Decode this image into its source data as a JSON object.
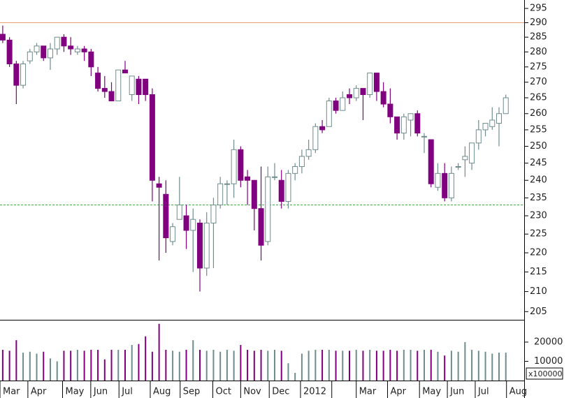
{
  "chart_data": {
    "type": "candlestick",
    "yscale": "log",
    "ylim": [
      203,
      298
    ],
    "yticks": [
      205,
      210,
      215,
      220,
      225,
      230,
      235,
      240,
      245,
      250,
      255,
      260,
      265,
      270,
      275,
      280,
      285,
      290,
      295
    ],
    "xlim": [
      -0.4,
      76.7
    ],
    "xticks": [
      {
        "value": -0.4,
        "label": "Mar"
      },
      {
        "value": 3.7,
        "label": "Apr"
      },
      {
        "value": 8.8,
        "label": "May"
      },
      {
        "value": 12.95,
        "label": "Jun"
      },
      {
        "value": 17.1,
        "label": "Jul"
      },
      {
        "value": 21.7,
        "label": "Aug"
      },
      {
        "value": 26.1,
        "label": "Sep"
      },
      {
        "value": 30.9,
        "label": "Oct"
      },
      {
        "value": 35.0,
        "label": "Nov"
      },
      {
        "value": 39.2,
        "label": "Dec"
      },
      {
        "value": 43.8,
        "label": "2012"
      },
      {
        "value": 48.4,
        "label": null
      },
      {
        "value": 52.0,
        "label": "Mar"
      },
      {
        "value": 56.6,
        "label": "Apr"
      },
      {
        "value": 61.3,
        "label": "May"
      },
      {
        "value": 65.4,
        "label": "Jun"
      },
      {
        "value": 69.5,
        "label": "Jul"
      },
      {
        "value": 74.1,
        "label": "Aug"
      }
    ],
    "up_color": "#6f8c8c",
    "down_color": "#800080",
    "reference_lines": [
      {
        "value": 290,
        "color": "#e8a070",
        "style": "solid"
      },
      {
        "value": 233,
        "color": "#3cb043",
        "style": "dashed"
      }
    ],
    "open": [
      286,
      284,
      276,
      269,
      277,
      280,
      282,
      278,
      281,
      285,
      282,
      280,
      281,
      280,
      273,
      268,
      267,
      264,
      274,
      266,
      271,
      271,
      266,
      239,
      236,
      223,
      229,
      230,
      226,
      228,
      216,
      228,
      233,
      239,
      239,
      249,
      241,
      240,
      232,
      223,
      241,
      240,
      234,
      242,
      244,
      247,
      249,
      256,
      256,
      264,
      261,
      266,
      265,
      268,
      266,
      273,
      267,
      263,
      259,
      254,
      258,
      260,
      253,
      252,
      238,
      242,
      235,
      244,
      246,
      245,
      251,
      255,
      256,
      257,
      260
    ],
    "high": [
      289,
      285,
      277,
      277,
      281,
      283,
      282,
      283,
      285,
      286,
      285,
      282,
      282,
      281,
      275,
      272,
      270,
      274,
      277,
      272,
      272,
      271,
      268,
      241,
      240,
      228,
      241,
      233,
      232,
      229,
      231,
      235,
      241,
      240,
      252,
      250,
      243,
      240,
      244,
      244,
      245,
      243,
      243,
      245,
      249,
      252,
      257,
      258,
      265,
      265,
      267,
      268,
      269,
      268,
      273,
      273,
      270,
      268,
      259,
      260,
      260,
      261,
      254,
      252,
      245,
      245,
      244,
      245,
      250,
      251,
      258,
      257,
      262,
      262,
      266
    ],
    "low": [
      283,
      275,
      263,
      268,
      276,
      279,
      277,
      274,
      279,
      280,
      279,
      279,
      277,
      272,
      267,
      265,
      264,
      264,
      273,
      264,
      263,
      264,
      234,
      218,
      220,
      222,
      229,
      221,
      215,
      210,
      214,
      216,
      232,
      233,
      235,
      238,
      233,
      226,
      218,
      222,
      240,
      232,
      232,
      240,
      242,
      246,
      248,
      254,
      256,
      260,
      261,
      263,
      264,
      258,
      265,
      264,
      262,
      257,
      252,
      252,
      253,
      253,
      248,
      238,
      237,
      234,
      234,
      243,
      241,
      243,
      249,
      253,
      255,
      250,
      260
    ],
    "close": [
      284,
      276,
      269,
      276,
      280,
      282,
      278,
      281,
      285,
      282,
      281,
      281,
      280,
      275,
      268,
      267,
      264,
      274,
      273,
      272,
      266,
      266,
      240,
      238,
      224,
      227,
      233,
      226,
      229,
      216,
      228,
      233,
      239,
      239,
      249,
      240,
      240,
      232,
      222,
      241,
      241,
      234,
      242,
      244,
      247,
      249,
      256,
      255,
      264,
      261,
      265,
      265,
      268,
      266,
      273,
      267,
      263,
      259,
      254,
      259,
      260,
      254,
      253,
      239,
      242,
      235,
      242,
      244,
      247,
      251,
      255,
      257,
      258,
      260,
      265
    ],
    "volume": {
      "values": [
        16000,
        15500,
        21000,
        14500,
        15000,
        14000,
        15000,
        11500,
        10000,
        15500,
        15500,
        16000,
        15500,
        16000,
        16000,
        11000,
        16000,
        16000,
        16000,
        18500,
        19000,
        23000,
        15000,
        29500,
        16000,
        15500,
        15000,
        16000,
        21000,
        16000,
        15500,
        16000,
        15000,
        16000,
        15500,
        18500,
        16000,
        15500,
        16000,
        15500,
        16000,
        15500,
        9000,
        4000,
        14000,
        15500,
        16000,
        16000,
        16000,
        15500,
        15500,
        15500,
        16000,
        15500,
        16000,
        15500,
        15500,
        16000,
        15500,
        16000,
        16000,
        15500,
        16000,
        16000,
        15000,
        13000,
        15500,
        15000,
        20000,
        16000,
        15500,
        15000,
        14000,
        14500,
        14500
      ],
      "ylim": [
        0,
        31600
      ],
      "yticks": [
        10000,
        20000
      ],
      "unit_label": "x100000"
    }
  }
}
